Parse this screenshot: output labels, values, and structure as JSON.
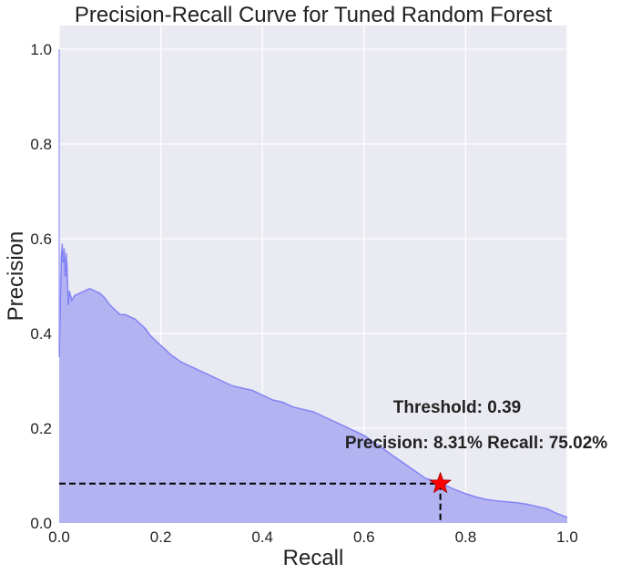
{
  "chart_data": {
    "type": "area",
    "title": "Precision-Recall Curve for Tuned Random Forest",
    "xlabel": "Recall",
    "ylabel": "Precision",
    "xlim": [
      0.0,
      1.0
    ],
    "ylim": [
      0.0,
      1.05
    ],
    "grid": true,
    "xticks": [
      0.0,
      0.2,
      0.4,
      0.6,
      0.8,
      1.0
    ],
    "xtick_labels": [
      "0.0",
      "0.2",
      "0.4",
      "0.6",
      "0.8",
      "1.0"
    ],
    "yticks": [
      0.0,
      0.2,
      0.4,
      0.6,
      0.8,
      1.0
    ],
    "ytick_labels": [
      "0.0",
      "0.2",
      "0.4",
      "0.6",
      "0.8",
      "1.0"
    ],
    "series": [
      {
        "name": "Precision-Recall",
        "color": "#0000ff",
        "fill_color": "#b3b3f2",
        "points": [
          [
            0.0,
            1.0
          ],
          [
            0.0,
            0.35
          ],
          [
            0.002,
            0.45
          ],
          [
            0.004,
            0.56
          ],
          [
            0.006,
            0.59
          ],
          [
            0.008,
            0.55
          ],
          [
            0.01,
            0.58
          ],
          [
            0.012,
            0.52
          ],
          [
            0.014,
            0.57
          ],
          [
            0.016,
            0.53
          ],
          [
            0.018,
            0.46
          ],
          [
            0.02,
            0.49
          ],
          [
            0.025,
            0.47
          ],
          [
            0.03,
            0.48
          ],
          [
            0.04,
            0.485
          ],
          [
            0.05,
            0.49
          ],
          [
            0.06,
            0.495
          ],
          [
            0.07,
            0.49
          ],
          [
            0.08,
            0.485
          ],
          [
            0.09,
            0.475
          ],
          [
            0.1,
            0.46
          ],
          [
            0.11,
            0.45
          ],
          [
            0.12,
            0.44
          ],
          [
            0.13,
            0.44
          ],
          [
            0.14,
            0.435
          ],
          [
            0.15,
            0.43
          ],
          [
            0.16,
            0.42
          ],
          [
            0.17,
            0.41
          ],
          [
            0.18,
            0.395
          ],
          [
            0.19,
            0.385
          ],
          [
            0.2,
            0.375
          ],
          [
            0.22,
            0.355
          ],
          [
            0.24,
            0.34
          ],
          [
            0.26,
            0.33
          ],
          [
            0.28,
            0.32
          ],
          [
            0.3,
            0.31
          ],
          [
            0.32,
            0.3
          ],
          [
            0.34,
            0.29
          ],
          [
            0.36,
            0.285
          ],
          [
            0.38,
            0.28
          ],
          [
            0.4,
            0.27
          ],
          [
            0.42,
            0.26
          ],
          [
            0.44,
            0.255
          ],
          [
            0.46,
            0.245
          ],
          [
            0.48,
            0.24
          ],
          [
            0.5,
            0.235
          ],
          [
            0.52,
            0.225
          ],
          [
            0.54,
            0.215
          ],
          [
            0.56,
            0.205
          ],
          [
            0.58,
            0.195
          ],
          [
            0.6,
            0.185
          ],
          [
            0.62,
            0.17
          ],
          [
            0.64,
            0.155
          ],
          [
            0.66,
            0.14
          ],
          [
            0.68,
            0.125
          ],
          [
            0.7,
            0.11
          ],
          [
            0.72,
            0.095
          ],
          [
            0.74,
            0.088
          ],
          [
            0.75,
            0.083
          ],
          [
            0.76,
            0.08
          ],
          [
            0.78,
            0.07
          ],
          [
            0.8,
            0.062
          ],
          [
            0.82,
            0.055
          ],
          [
            0.84,
            0.05
          ],
          [
            0.86,
            0.047
          ],
          [
            0.88,
            0.045
          ],
          [
            0.9,
            0.043
          ],
          [
            0.92,
            0.04
          ],
          [
            0.94,
            0.035
          ],
          [
            0.96,
            0.03
          ],
          [
            0.98,
            0.02
          ],
          [
            1.0,
            0.012
          ]
        ]
      }
    ],
    "highlight_point": {
      "recall": 0.7502,
      "precision": 0.0831,
      "marker": "star",
      "color": "#ff0000"
    },
    "annotations": {
      "threshold_text": "Threshold: 0.39",
      "metrics_text": "Precision: 8.31% Recall: 75.02%"
    }
  }
}
